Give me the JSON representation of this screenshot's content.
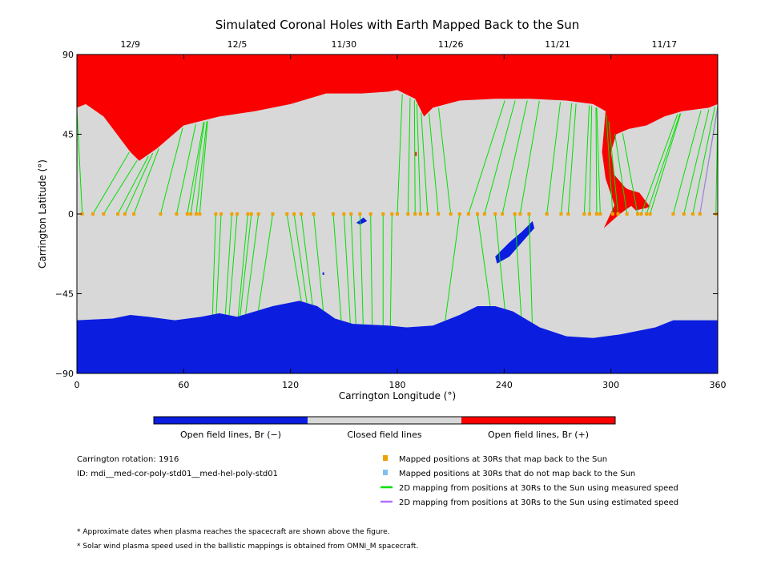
{
  "title": "Simulated Coronal Holes with Earth Mapped Back to the Sun",
  "colors": {
    "open_neg": "#0b1ee0",
    "closed": "#d8d8d8",
    "open_pos": "#fa0000",
    "mapped": "#f0a000",
    "not_mapped": "#80c0f0",
    "measured": "#00e000",
    "estimated": "#b070ff"
  },
  "chart_data": {
    "type": "map",
    "xlabel": "Carrington Longitude (°)",
    "ylabel": "Carrington Latitude (°)",
    "xlim": [
      0,
      360
    ],
    "ylim": [
      -90,
      90
    ],
    "x_ticks": [
      "0",
      "60",
      "120",
      "180",
      "240",
      "300",
      "360"
    ],
    "y_ticks": [
      "90",
      "45",
      "0",
      "-45",
      "-90"
    ],
    "top_dates": [
      {
        "label": "12/9",
        "lon": 30
      },
      {
        "label": "12/5",
        "lon": 90
      },
      {
        "label": "11/30",
        "lon": 150
      },
      {
        "label": "11/26",
        "lon": 210
      },
      {
        "label": "11/21",
        "lon": 270
      },
      {
        "label": "11/17",
        "lon": 330
      }
    ],
    "mapped_lon": [
      3,
      9,
      15,
      23,
      27,
      32,
      47,
      56,
      62,
      64,
      67,
      69,
      78,
      81,
      87,
      90,
      96,
      98,
      102,
      110,
      118,
      122,
      126,
      133,
      144,
      150,
      154,
      159,
      165,
      172,
      177,
      180,
      186,
      190,
      193,
      197,
      203,
      210,
      215,
      220,
      225,
      229,
      235,
      239,
      246,
      249,
      254,
      264,
      272,
      276,
      285,
      288,
      292,
      294,
      301,
      304,
      309,
      315,
      317,
      320,
      322,
      335,
      341,
      346,
      350,
      359
    ],
    "estimated_lines": [
      {
        "from": [
          350,
          0
        ],
        "to": [
          360,
          60
        ]
      }
    ],
    "open_pos_north_boundary": [
      [
        0,
        60
      ],
      [
        5,
        62
      ],
      [
        15,
        55
      ],
      [
        30,
        35
      ],
      [
        35,
        30
      ],
      [
        45,
        37
      ],
      [
        60,
        50
      ],
      [
        80,
        55
      ],
      [
        100,
        58
      ],
      [
        120,
        62
      ],
      [
        130,
        65
      ],
      [
        140,
        68
      ],
      [
        160,
        68
      ],
      [
        175,
        69
      ],
      [
        180,
        70
      ],
      [
        190,
        65
      ],
      [
        195,
        55
      ],
      [
        200,
        60
      ],
      [
        215,
        64
      ],
      [
        235,
        65
      ],
      [
        255,
        65
      ],
      [
        275,
        64
      ],
      [
        290,
        62
      ],
      [
        297,
        58
      ],
      [
        300,
        50
      ],
      [
        303,
        45
      ],
      [
        310,
        48
      ],
      [
        320,
        50
      ],
      [
        330,
        55
      ],
      [
        340,
        58
      ],
      [
        355,
        60
      ],
      [
        360,
        62
      ]
    ],
    "open_neg_south_boundary": [
      [
        0,
        -60
      ],
      [
        20,
        -59
      ],
      [
        30,
        -57
      ],
      [
        40,
        -58
      ],
      [
        55,
        -60
      ],
      [
        70,
        -58
      ],
      [
        80,
        -56
      ],
      [
        90,
        -58
      ],
      [
        110,
        -52
      ],
      [
        125,
        -49
      ],
      [
        135,
        -52
      ],
      [
        145,
        -59
      ],
      [
        155,
        -62
      ],
      [
        175,
        -63
      ],
      [
        185,
        -64
      ],
      [
        200,
        -63
      ],
      [
        215,
        -57
      ],
      [
        225,
        -52
      ],
      [
        235,
        -52
      ],
      [
        245,
        -55
      ],
      [
        260,
        -64
      ],
      [
        275,
        -69
      ],
      [
        290,
        -70
      ],
      [
        305,
        -68
      ],
      [
        325,
        -64
      ],
      [
        335,
        -60
      ],
      [
        360,
        -60
      ]
    ],
    "legend_bar": [
      "Open field lines, Br (−)",
      "Closed field lines",
      "Open field lines, Br (+)"
    ],
    "legend": [
      "Mapped positions at 30Rs that map back to the Sun",
      "Mapped positions at 30Rs that do not map back to the Sun",
      "2D mapping from positions at 30Rs to the Sun using measured speed",
      "2D mapping from positions at 30Rs to the Sun using estimated speed"
    ]
  },
  "info": {
    "rotation": "Carrington rotation: 1916",
    "id": "ID: mdi__med-cor-poly-std01__med-hel-poly-std01"
  },
  "footnotes": [
    "* Approximate dates when plasma reaches the spacecraft are shown above the figure.",
    "* Solar wind plasma speed used in the ballistic mappings is obtained from OMNI_M spacecraft."
  ]
}
